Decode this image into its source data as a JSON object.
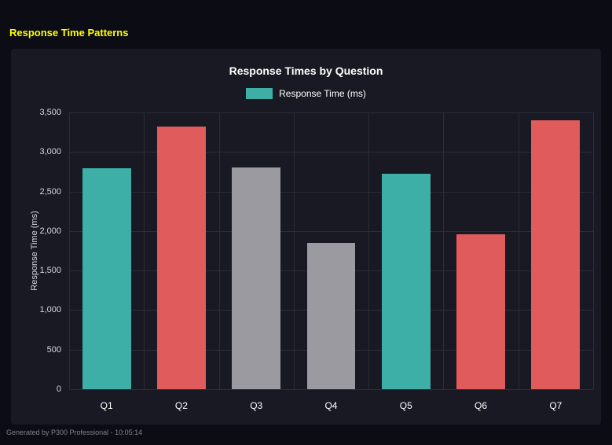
{
  "header": {
    "title": "Response Time Patterns"
  },
  "chart_data": {
    "type": "bar",
    "title": "Response Times by Question",
    "legend": "Response Time (ms)",
    "xlabel": "",
    "ylabel": "Response Time (ms)",
    "categories": [
      "Q1",
      "Q2",
      "Q3",
      "Q4",
      "Q5",
      "Q6",
      "Q7"
    ],
    "values": [
      2790,
      3320,
      2800,
      1845,
      2725,
      1955,
      3400
    ],
    "bar_colors": [
      "#3dafa7",
      "#e05b5b",
      "#9a9aa0",
      "#9a9aa0",
      "#3dafa7",
      "#e05b5b",
      "#e05b5b"
    ],
    "ylim": [
      0,
      3500
    ],
    "ytick_step": 500,
    "ytick_labels": [
      "0",
      "500",
      "1,000",
      "1,500",
      "2,000",
      "2,500",
      "3,000",
      "3,500"
    ],
    "grid": true,
    "legend_position": "top",
    "legend_swatch_color": "#3dafa7"
  },
  "colors": {
    "page_background": "#0c0c14",
    "panel_background": "#191923",
    "gridline": "#2c2c3a",
    "title_yellow": "#ffff00",
    "teal": "#3dafa7",
    "red": "#e05b5b",
    "gray": "#9a9aa0"
  },
  "footer": {
    "text": "Generated by P300 Professional - 10:05:14"
  }
}
